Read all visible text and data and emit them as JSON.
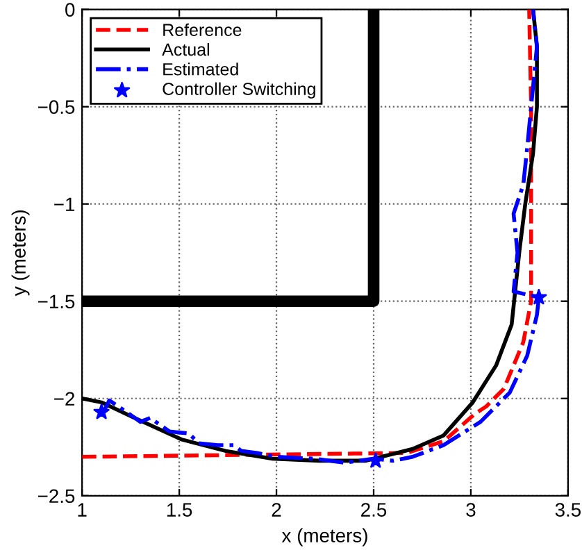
{
  "chart_data": {
    "type": "line",
    "xlabel": "x (meters)",
    "ylabel": "y (meters)",
    "xlim": [
      1,
      3.5
    ],
    "ylim": [
      -2.5,
      0
    ],
    "xticks": [
      1,
      1.5,
      2,
      2.5,
      3,
      3.5
    ],
    "yticks": [
      {
        "value": -2.5,
        "label": "−2.5"
      },
      {
        "value": -2,
        "label": "−2"
      },
      {
        "value": -1.5,
        "label": "−1.5"
      },
      {
        "value": -1,
        "label": "−1"
      },
      {
        "value": -0.5,
        "label": "−0.5"
      },
      0
    ],
    "grid": true,
    "legend": "top left",
    "series": [
      {
        "color": "#000000",
        "line_style": "solid",
        "x": [
          2.5,
          2.5,
          1
        ],
        "values": [
          0,
          -1.5,
          -1.5
        ]
      },
      {
        "name": "Reference",
        "color": "#ff0000",
        "line_style": "dashed",
        "x": [
          1,
          2.67,
          2.86,
          3.02,
          3.08,
          3.17,
          3.27,
          3.31,
          3.31,
          3.3
        ],
        "values": [
          -2.3,
          -2.28,
          -2.22,
          -2.08,
          -2.04,
          -1.95,
          -1.71,
          -1.5,
          -0.5,
          0
        ]
      },
      {
        "name": "Actual",
        "color": "#000000",
        "line_style": "solid",
        "x": [
          1,
          1.1,
          1.27,
          1.51,
          1.74,
          1.98,
          2.22,
          2.46,
          2.7,
          2.86,
          3.01,
          3.13,
          3.21,
          3.23,
          3.25,
          3.28,
          3.32,
          3.34,
          3.34,
          3.32
        ],
        "values": [
          -2,
          -2.02,
          -2.1,
          -2.21,
          -2.27,
          -2.31,
          -2.32,
          -2.32,
          -2.26,
          -2.19,
          -2.02,
          -1.83,
          -1.62,
          -1.43,
          -1.24,
          -1.0,
          -0.74,
          -0.5,
          -0.19,
          0
        ]
      },
      {
        "name": "Estimated",
        "color": "#0000ff",
        "line_style": "dashdot",
        "x": [
          1.1,
          1.14,
          1.2,
          1.3,
          1.35,
          1.45,
          1.55,
          1.6,
          1.7,
          1.78,
          1.82,
          1.9,
          2.0,
          2.2,
          2.35,
          2.5,
          2.6,
          2.7,
          2.86,
          3.05,
          3.2,
          3.29,
          3.34,
          3.35,
          3.22,
          3.24,
          3.22,
          3.27,
          3.29,
          3.34,
          3.32
        ],
        "values": [
          -2.09,
          -2.01,
          -2.05,
          -2.12,
          -2.1,
          -2.17,
          -2.18,
          -2.23,
          -2.24,
          -2.24,
          -2.27,
          -2.28,
          -2.3,
          -2.31,
          -2.33,
          -2.31,
          -2.32,
          -2.3,
          -2.24,
          -2.12,
          -1.97,
          -1.78,
          -1.57,
          -1.48,
          -1.45,
          -1.25,
          -1.05,
          -0.9,
          -0.71,
          -0.19,
          0
        ]
      },
      {
        "name": "Controller Switching",
        "type": "scatter",
        "color": "#0000ff",
        "marker": "star",
        "x": [
          1.1,
          2.51,
          3.35
        ],
        "values": [
          -2.07,
          -2.32,
          -1.48
        ]
      }
    ]
  }
}
